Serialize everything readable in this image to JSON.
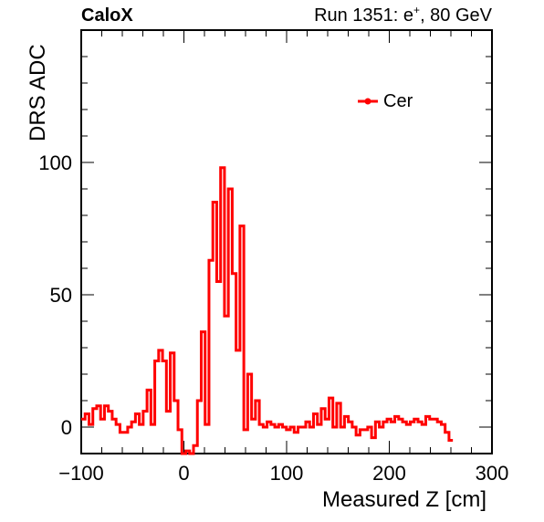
{
  "chart_data": {
    "type": "line",
    "top_left_label": "CaloX",
    "top_right_label": {
      "prefix": "Run 1351: e",
      "superscript": "+",
      "suffix": ", 80 GeV"
    },
    "xlabel": "Measured Z [cm]",
    "ylabel": "DRS ADC",
    "xlim": [
      -100,
      300
    ],
    "ylim": [
      -10,
      150
    ],
    "x_ticks": [
      {
        "value": -100,
        "label": "−100"
      },
      {
        "value": 0,
        "label": "0"
      },
      {
        "value": 100,
        "label": "100"
      },
      {
        "value": 200,
        "label": "200"
      },
      {
        "value": 300,
        "label": "300"
      }
    ],
    "y_ticks": [
      {
        "value": 0,
        "label": "0"
      },
      {
        "value": 50,
        "label": "50"
      },
      {
        "value": 100,
        "label": "100"
      }
    ],
    "legend_position": "top-right",
    "grid": false,
    "series": [
      {
        "name": "Cer",
        "color": "#ff0000",
        "draw_style": "histogram-step",
        "bin_width": 3.77,
        "x_start": -100,
        "values": [
          3,
          5,
          1,
          7,
          8,
          3,
          8,
          6,
          3,
          1,
          -2,
          -2,
          0,
          2,
          5,
          1,
          6,
          14,
          1,
          25,
          29,
          25,
          6,
          28,
          10,
          -1,
          -12,
          -9,
          -10,
          -7,
          10,
          36,
          1,
          63,
          85,
          55,
          98,
          42,
          90,
          58,
          29,
          76,
          -1,
          20,
          3,
          10,
          1,
          0,
          2,
          1,
          0,
          1,
          0,
          -1,
          0,
          -2,
          0,
          0,
          2,
          0,
          5,
          1,
          7,
          3,
          11,
          0,
          9,
          0,
          4,
          2,
          0,
          -3,
          -1,
          -1,
          0,
          -4,
          2,
          0,
          2,
          3,
          2,
          4,
          3,
          2,
          1,
          2,
          3,
          2,
          1,
          4,
          3,
          3,
          2,
          1,
          -2,
          -5
        ]
      }
    ]
  }
}
